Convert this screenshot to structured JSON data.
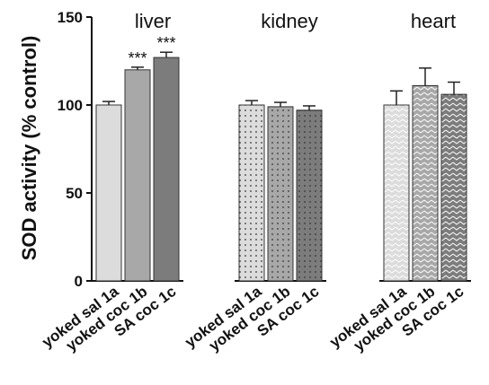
{
  "chart_data": {
    "type": "bar",
    "ylabel": "SOD activity (% control)",
    "ylim": [
      0,
      150
    ],
    "yticks": [
      0,
      50,
      100,
      150
    ],
    "grid": false,
    "groups": [
      {
        "name": "liver",
        "bars": [
          {
            "category": "yoked sal 1a",
            "value": 100,
            "error": 2,
            "significance": "",
            "color": "#dcdcdc",
            "pattern": "solid"
          },
          {
            "category": "yoked coc 1b",
            "value": 120,
            "error": 1.5,
            "significance": "***",
            "color": "#a8a8a8",
            "pattern": "solid"
          },
          {
            "category": "SA coc 1c",
            "value": 127,
            "error": 3,
            "significance": "***",
            "color": "#7c7c7c",
            "pattern": "solid"
          }
        ]
      },
      {
        "name": "kidney",
        "bars": [
          {
            "category": "yoked sal 1a",
            "value": 100,
            "error": 2.5,
            "significance": "",
            "color": "#dcdcdc",
            "pattern": "dots"
          },
          {
            "category": "yoked coc 1b",
            "value": 99,
            "error": 2.5,
            "significance": "",
            "color": "#a8a8a8",
            "pattern": "dots"
          },
          {
            "category": "SA coc 1c",
            "value": 97,
            "error": 2.5,
            "significance": "",
            "color": "#7c7c7c",
            "pattern": "dots"
          }
        ]
      },
      {
        "name": "heart",
        "bars": [
          {
            "category": "yoked sal 1a",
            "value": 100,
            "error": 8,
            "significance": "",
            "color": "#dcdcdc",
            "pattern": "chevron"
          },
          {
            "category": "yoked coc 1b",
            "value": 111,
            "error": 10,
            "significance": "",
            "color": "#a8a8a8",
            "pattern": "chevron"
          },
          {
            "category": "SA coc 1c",
            "value": 106,
            "error": 7,
            "significance": "",
            "color": "#7c7c7c",
            "pattern": "chevron"
          }
        ]
      }
    ]
  }
}
